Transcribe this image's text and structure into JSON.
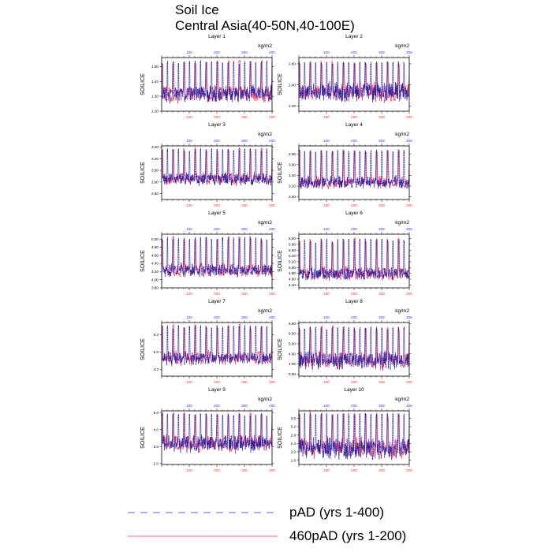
{
  "title": "Soil Ice",
  "subtitle": "Central Asia(40-50N,40-100E)",
  "colors": {
    "pad": "#3333ee",
    "pad460": "#ff3355",
    "top_axis": "#3333ff",
    "bottom_axis": "#ff3333"
  },
  "legend": [
    {
      "label": "pAD (yrs 1-400)",
      "style": "dashed",
      "color": "#3333ee"
    },
    {
      "label": "460pAD (yrs 1-200)",
      "style": "solid",
      "color": "#ff3355"
    }
  ],
  "chart_data": [
    {
      "type": "line",
      "title": "Layer 1",
      "units": "kg/m2",
      "ylabel": "SOILICE",
      "ylim": [
        1.2,
        1.56
      ],
      "yticks": [
        "1.20",
        "1.30",
        "1.40",
        "1.50"
      ],
      "top_xlim": [
        0,
        400
      ],
      "top_xticks": [
        "100",
        "200",
        "300",
        "400"
      ],
      "bottom_xlim": [
        0,
        400
      ],
      "bottom_xticks": [
        "100",
        "200",
        "300",
        "400"
      ],
      "envelope": {
        "low": 1.25,
        "high": 1.54,
        "base": 1.33
      }
    },
    {
      "type": "line",
      "title": "Layer 2",
      "units": "kg/m2",
      "ylabel": "SOILICE",
      "ylim": [
        2.15,
        2.66
      ],
      "yticks": [
        "2.20",
        "2.40",
        "2.60"
      ],
      "top_xlim": [
        0,
        400
      ],
      "top_xticks": [
        "100",
        "200",
        "300",
        "400"
      ],
      "bottom_xlim": [
        0,
        400
      ],
      "bottom_xticks": [
        "100",
        "200",
        "300",
        "400"
      ],
      "envelope": {
        "low": 2.23,
        "high": 2.62,
        "base": 2.38
      }
    },
    {
      "type": "line",
      "title": "Layer 3",
      "units": "kg/m2",
      "ylabel": "SOILICE",
      "ylim": [
        2.5,
        3.42
      ],
      "yticks": [
        "2.60",
        "2.80",
        "3.00",
        "3.20",
        "3.40"
      ],
      "top_xlim": [
        0,
        400
      ],
      "top_xticks": [
        "100",
        "200",
        "300",
        "400"
      ],
      "bottom_xlim": [
        0,
        400
      ],
      "bottom_xticks": [
        "100",
        "200",
        "300",
        "400"
      ],
      "envelope": {
        "low": 2.72,
        "high": 3.38,
        "base": 2.85
      }
    },
    {
      "type": "line",
      "title": "Layer 4",
      "units": "kg/m2",
      "ylabel": "SOILICE",
      "ylim": [
        2.95,
        3.95
      ],
      "yticks": [
        "3.00",
        "3.20",
        "3.40",
        "3.60",
        "3.80"
      ],
      "top_xlim": [
        0,
        400
      ],
      "top_xticks": [
        "100",
        "200",
        "300",
        "400"
      ],
      "bottom_xlim": [
        0,
        400
      ],
      "bottom_xticks": [
        "100",
        "200",
        "300",
        "400"
      ],
      "envelope": {
        "low": 3.12,
        "high": 3.88,
        "base": 3.25
      }
    },
    {
      "type": "line",
      "title": "Layer 5",
      "units": "kg/m2",
      "ylabel": "SOILICE",
      "ylim": [
        3.8,
        5.12
      ],
      "yticks": [
        "3.80",
        "4.00",
        "4.20",
        "4.40",
        "4.60",
        "4.80",
        "5.00"
      ],
      "top_xlim": [
        0,
        400
      ],
      "top_xticks": [
        "100",
        "200",
        "300",
        "400"
      ],
      "bottom_xlim": [
        0,
        400
      ],
      "bottom_xticks": [
        "100",
        "200",
        "300",
        "400"
      ],
      "envelope": {
        "low": 4.05,
        "high": 5.05,
        "base": 4.2
      }
    },
    {
      "type": "line",
      "title": "Layer 6",
      "units": "kg/m2",
      "ylabel": "SOILICE",
      "ylim": [
        4.3,
        6.15
      ],
      "yticks": [
        "4.40",
        "4.60",
        "4.80",
        "5.00",
        "5.20",
        "5.40",
        "5.60",
        "5.80",
        "6.00"
      ],
      "top_xlim": [
        0,
        400
      ],
      "top_xticks": [
        "100",
        "200",
        "300",
        "400"
      ],
      "bottom_xlim": [
        0,
        400
      ],
      "bottom_xticks": [
        "100",
        "200",
        "300",
        "400"
      ],
      "envelope": {
        "low": 4.55,
        "high": 6.0,
        "base": 4.7
      }
    },
    {
      "type": "line",
      "title": "Layer 7",
      "units": "kg/m2",
      "ylabel": "SOILICE",
      "ylim": [
        3.6,
        6.7
      ],
      "yticks": [
        "4.0",
        "5.0",
        "6.0"
      ],
      "top_xlim": [
        0,
        400
      ],
      "top_xticks": [
        "100",
        "200",
        "300",
        "400"
      ],
      "bottom_xlim": [
        0,
        400
      ],
      "bottom_xticks": [
        "100",
        "200",
        "300",
        "400"
      ],
      "envelope": {
        "low": 4.2,
        "high": 6.55,
        "base": 4.6
      }
    },
    {
      "type": "line",
      "title": "Layer 8",
      "units": "kg/m2",
      "ylabel": "SOILICE",
      "ylim": [
        3.4,
        6.05
      ],
      "yticks": [
        "3.50",
        "4.00",
        "4.50",
        "5.00",
        "5.50",
        "6.00"
      ],
      "top_xlim": [
        0,
        400
      ],
      "top_xticks": [
        "100",
        "200",
        "300",
        "400"
      ],
      "bottom_xlim": [
        0,
        400
      ],
      "bottom_xticks": [
        "100",
        "200",
        "300",
        "400"
      ],
      "envelope": {
        "low": 3.65,
        "high": 5.85,
        "base": 4.3
      }
    },
    {
      "type": "line",
      "title": "Layer 9",
      "units": "kg/m2",
      "ylabel": "SOILICE",
      "ylim": [
        1.95,
        5.1
      ],
      "yticks": [
        "2.0",
        "3.0",
        "4.0",
        "5.0"
      ],
      "top_xlim": [
        0,
        400
      ],
      "top_xticks": [
        "100",
        "200",
        "300",
        "400"
      ],
      "bottom_xlim": [
        0,
        400
      ],
      "bottom_xticks": [
        "100",
        "200",
        "300",
        "400"
      ],
      "envelope": {
        "low": 2.6,
        "high": 4.95,
        "base": 3.4
      }
    },
    {
      "type": "line",
      "title": "Layer 10",
      "units": "kg/m2",
      "ylabel": "SOILICE",
      "ylim": [
        1.4,
        3.95
      ],
      "yticks": [
        "1.6",
        "2.0",
        "2.4",
        "2.8",
        "3.2",
        "3.6"
      ],
      "top_xlim": [
        0,
        400
      ],
      "top_xticks": [
        "100",
        "200",
        "300",
        "400"
      ],
      "bottom_xlim": [
        0,
        400
      ],
      "bottom_xticks": [
        "100",
        "200",
        "300",
        "400"
      ],
      "envelope": {
        "low": 1.6,
        "high": 3.85,
        "base": 2.4
      }
    }
  ]
}
